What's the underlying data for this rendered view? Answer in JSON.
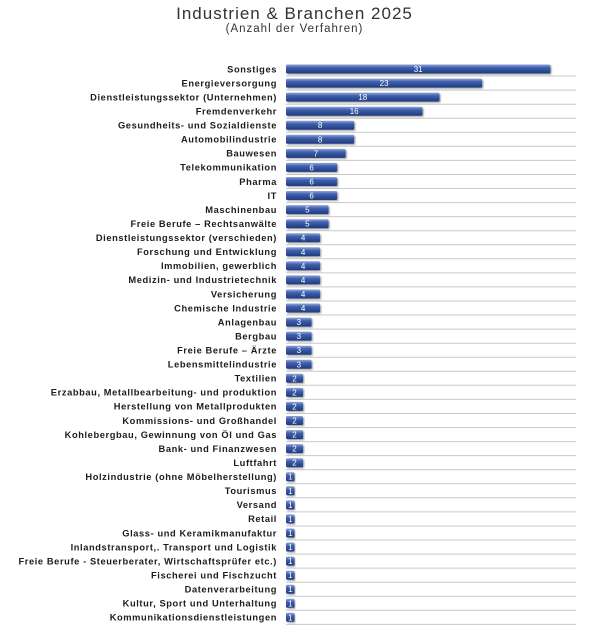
{
  "chart_data": {
    "type": "bar",
    "orientation": "horizontal",
    "title": "Industrien & Branchen 2025",
    "subtitle": "(Anzahl der Verfahren)",
    "xlabel": "",
    "ylabel": "",
    "xlim": [
      0,
      34
    ],
    "grid": true,
    "bar_color": "#2f4f9c",
    "categories": [
      "Sonstiges",
      "Energieversorgung",
      "Dienstleistungssektor (Unternehmen)",
      "Fremdenverkehr",
      "Gesundheits- und Sozialdienste",
      "Automobilindustrie",
      "Bauwesen",
      "Telekommunikation",
      "Pharma",
      "IT",
      "Maschinenbau",
      "Freie Berufe – Rechtsanwälte",
      "Dienstleistungssektor (verschieden)",
      "Forschung und Entwicklung",
      "Immobilien, gewerblich",
      "Medizin- und Industrietechnik",
      "Versicherung",
      "Chemische Industrie",
      "Anlagenbau",
      "Bergbau",
      "Freie Berufe – Ärzte",
      "Lebensmittelindustrie",
      "Textilien",
      "Erzabbau, Metallbearbeitung- und produktion",
      "Herstellung von Metallprodukten",
      "Kommissions- und Großhandel",
      "Kohlebergbau, Gewinnung von Öl und Gas",
      "Bank- und Finanzwesen",
      "Luftfahrt",
      "Holzindustrie (ohne Möbelherstellung)",
      "Tourismus",
      "Versand",
      "Retail",
      "Glass- und Keramikmanufaktur",
      "Inlandstransport,. Transport und Logistik",
      "Freie Berufe - Steuerberater, Wirtschaftsprüfer etc.)",
      "Fischerei und Fischzucht",
      "Datenverarbeitung",
      "Kultur, Sport und Unterhaltung",
      "Kommunikationsdienstleistungen"
    ],
    "values": [
      31,
      23,
      18,
      16,
      8,
      8,
      7,
      6,
      6,
      6,
      5,
      5,
      4,
      4,
      4,
      4,
      4,
      4,
      3,
      3,
      3,
      3,
      2,
      2,
      2,
      2,
      2,
      2,
      2,
      1,
      1,
      1,
      1,
      1,
      1,
      1,
      1,
      1,
      1,
      1
    ]
  }
}
